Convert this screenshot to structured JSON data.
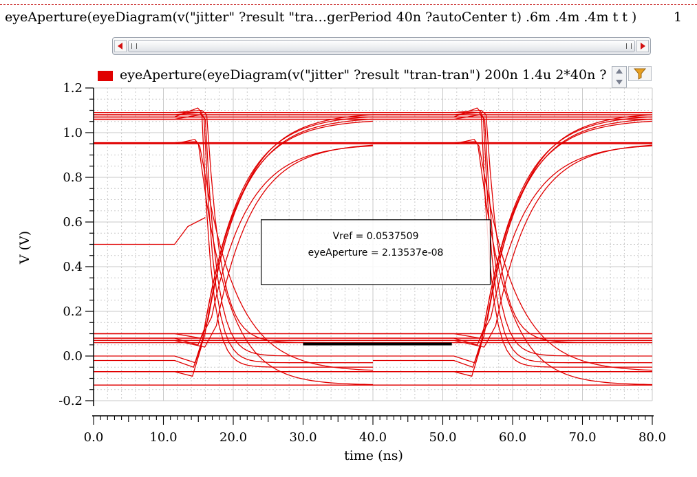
{
  "expression": {
    "text": "eyeAperture(eyeDiagram(v(\"jitter\" ?result \"tra…gerPeriod 40n ?autoCenter t) .6m .4m .4m t t )",
    "index": "1"
  },
  "legend": {
    "label": "eyeAperture(eyeDiagram(v(\"jitter\" ?result \"tran-tran\") 200n 1.4u 2*40n ?"
  },
  "icons": {
    "scroll_left": "arrow-left-icon",
    "scroll_right": "arrow-right-icon",
    "zoom": "spin-up-down-icon",
    "filter": "funnel-filter-icon"
  },
  "colors": {
    "trace": "#e00000",
    "grid": "#c9c9c9",
    "aperture": "#000000"
  },
  "marker": {
    "line1": "Vref = 0.0537509",
    "line2": "eyeAperture = 2.13537e-08"
  },
  "chart_data": {
    "type": "line",
    "title": "",
    "xlabel": "time (ns)",
    "ylabel": "V (V)",
    "xlim": [
      0,
      80
    ],
    "ylim": [
      -0.2,
      1.2
    ],
    "x_ticks": [
      0,
      10,
      20,
      30,
      40,
      50,
      60,
      70,
      80
    ],
    "x_tick_labels": [
      "0.0",
      "10.0",
      "20.0",
      "30.0",
      "40.0",
      "50.0",
      "60.0",
      "70.0",
      "80.0"
    ],
    "y_ticks": [
      -0.2,
      0.0,
      0.2,
      0.4,
      0.6,
      0.8,
      1.0,
      1.2
    ],
    "y_tick_labels": [
      "-0.2",
      "0.0",
      "0.2",
      "0.4",
      "0.6",
      "0.8",
      "1.0",
      "1.2"
    ],
    "grid": true,
    "legend_position": "top",
    "series_color": "#e00000",
    "horizontal_levels": [
      1.09,
      1.08,
      1.07,
      1.06,
      0.955,
      0.95,
      0.1,
      0.08,
      0.07,
      0.06,
      -0.07,
      -0.13
    ],
    "falling_edges": [
      {
        "t0": 11.6,
        "t1": 15.5,
        "t2": 18.5,
        "from": 1.07,
        "peak": 1.11,
        "to": -0.05
      },
      {
        "t0": 11.6,
        "t1": 15.8,
        "t2": 19.0,
        "from": 1.08,
        "peak": 1.09,
        "to": -0.03
      },
      {
        "t0": 11.6,
        "t1": 16.0,
        "t2": 19.5,
        "from": 1.06,
        "peak": 1.08,
        "to": 0.0
      },
      {
        "t0": 11.6,
        "t1": 16.2,
        "t2": 20.5,
        "from": 1.09,
        "peak": 1.1,
        "to": 0.06
      },
      {
        "t0": 11.6,
        "t1": 15.0,
        "t2": 24.0,
        "from": 0.95,
        "peak": 0.97,
        "to": -0.13
      },
      {
        "t0": 11.6,
        "t1": 15.2,
        "t2": 26.0,
        "from": 0.955,
        "peak": 0.96,
        "to": -0.07
      }
    ],
    "rising_edges": [
      {
        "t0": 11.6,
        "t1": 15.0,
        "from": -0.02,
        "dip": -0.05,
        "to": 1.08
      },
      {
        "t0": 11.6,
        "t1": 15.3,
        "from": 0.0,
        "dip": -0.03,
        "to": 1.07
      },
      {
        "t0": 11.6,
        "t1": 15.8,
        "from": 0.08,
        "dip": 0.05,
        "to": 1.09
      },
      {
        "t0": 11.6,
        "t1": 16.3,
        "from": 0.1,
        "dip": 0.08,
        "to": 0.95
      },
      {
        "t0": 11.6,
        "t1": 17.0,
        "from": 0.07,
        "dip": 0.04,
        "to": 0.955
      },
      {
        "t0": 11.6,
        "t1": 14.8,
        "from": -0.07,
        "dip": -0.09,
        "to": 1.06
      }
    ],
    "initial_trace": {
      "x": [
        0,
        11.6,
        13.5,
        16.0
      ],
      "y": [
        0.5,
        0.5,
        0.58,
        0.62
      ]
    },
    "eye_aperture": {
      "x_start": 30.0,
      "x_end": 51.3,
      "y": 0.054
    },
    "marker_box": {
      "x_start": 24.0,
      "x_end": 56.8,
      "y_top": 0.61,
      "y_bottom": 0.32
    }
  }
}
